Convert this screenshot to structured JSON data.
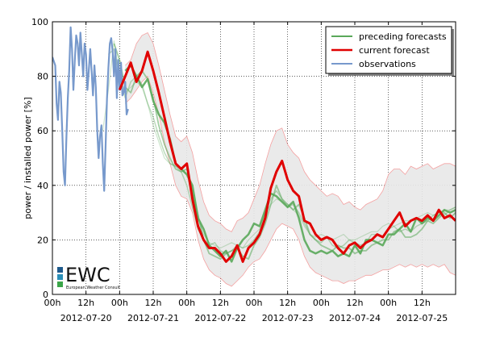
{
  "chart_data": {
    "type": "line",
    "title": "",
    "ylabel": "power / installed power [%]",
    "xlabel": "",
    "ylim": [
      0,
      100
    ],
    "yticks": [
      0,
      20,
      40,
      60,
      80,
      100
    ],
    "xlim_hours": [
      0,
      144
    ],
    "xticks_hours": [
      0,
      12,
      24,
      36,
      48,
      60,
      72,
      84,
      96,
      108,
      120,
      132
    ],
    "xtick_labels": [
      "00h",
      "12h",
      "00h",
      "12h",
      "00h",
      "12h",
      "00h",
      "12h",
      "00h",
      "12h",
      "00h",
      "12h"
    ],
    "date_labels": [
      "2012-07-20",
      "2012-07-21",
      "2012-07-22",
      "2012-07-23",
      "2012-07-24",
      "2012-07-25"
    ],
    "grid": true,
    "legend_position": "top-right",
    "legend": [
      {
        "label": "preceding forecasts",
        "color": "#5aa85a"
      },
      {
        "label": "current forecast",
        "color": "#e00000"
      },
      {
        "label": "observations",
        "color": "#7799cc"
      }
    ],
    "series": [
      {
        "name": "observations",
        "color": "#7799cc",
        "x": [
          0,
          1,
          1.5,
          2,
          2.5,
          3,
          3.5,
          4,
          4.5,
          5,
          5.5,
          6,
          6.5,
          7,
          7.5,
          8,
          8.5,
          9,
          9.5,
          10,
          10.5,
          11,
          11.5,
          12,
          12.5,
          13,
          13.5,
          14,
          14.5,
          15,
          15.5,
          16,
          16.5,
          17,
          17.5,
          18,
          18.5,
          19,
          19.5,
          20,
          20.5,
          21,
          21.5,
          22,
          22.5,
          23,
          23.5,
          24,
          24.5,
          25,
          25.5,
          26,
          26.5,
          27
        ],
        "y": [
          87,
          84,
          70,
          64,
          78,
          74,
          60,
          45,
          40,
          58,
          72,
          82,
          98,
          90,
          75,
          86,
          95,
          92,
          84,
          96,
          88,
          80,
          92,
          88,
          75,
          82,
          90,
          82,
          73,
          84,
          76,
          60,
          50,
          58,
          62,
          48,
          38,
          55,
          72,
          83,
          92,
          94,
          89,
          80,
          90,
          72,
          86,
          75,
          85,
          73,
          74,
          78,
          66,
          68
        ]
      },
      {
        "name": "current forecast",
        "color": "#e00000",
        "x": [
          24,
          26,
          28,
          30,
          32,
          34,
          36,
          38,
          40,
          42,
          44,
          46,
          48,
          50,
          52,
          54,
          56,
          58,
          60,
          62,
          64,
          66,
          68,
          70,
          72,
          74,
          76,
          78,
          80,
          82,
          84,
          86,
          88,
          90,
          92,
          94,
          96,
          98,
          100,
          102,
          104,
          106,
          108,
          110,
          112,
          114,
          116,
          118,
          120,
          122,
          124,
          126,
          128,
          130,
          132,
          134,
          136,
          138,
          140,
          142,
          144
        ],
        "y": [
          75,
          80,
          85,
          78,
          82,
          89,
          82,
          74,
          65,
          56,
          48,
          46,
          48,
          35,
          25,
          20,
          17,
          17,
          15,
          12,
          14,
          18,
          12,
          17,
          19,
          22,
          28,
          39,
          45,
          49,
          42,
          38,
          36,
          27,
          26,
          22,
          20,
          21,
          20,
          17,
          15,
          18,
          19,
          17,
          19,
          20,
          22,
          21,
          24,
          27,
          30,
          25,
          27,
          28,
          27,
          29,
          27,
          31,
          28,
          29,
          27
        ]
      },
      {
        "name": "preceding forecasts",
        "color": "#5aa85a",
        "x": [
          26,
          28,
          30,
          32,
          34,
          36,
          38,
          40,
          42,
          44,
          46,
          48,
          50,
          52,
          54,
          56,
          58,
          60,
          62,
          64,
          66,
          68,
          70,
          72,
          74,
          76,
          78,
          80,
          82,
          84,
          86,
          88,
          90,
          92,
          94,
          96,
          98,
          100,
          102,
          104,
          106,
          108,
          110,
          112,
          114,
          116,
          118,
          120,
          122,
          124,
          126,
          128,
          130,
          132,
          134,
          136,
          138,
          140,
          142,
          144
        ],
        "y": [
          82,
          84,
          80,
          76,
          79,
          71,
          66,
          63,
          57,
          48,
          46,
          44,
          40,
          28,
          24,
          18,
          16,
          14,
          16,
          12,
          17,
          20,
          22,
          26,
          25,
          31,
          37,
          36,
          34,
          32,
          34,
          28,
          20,
          16,
          15,
          16,
          15,
          16,
          14,
          15,
          14,
          18,
          15,
          20,
          20,
          19,
          18,
          22,
          22,
          24,
          26,
          23,
          28,
          26,
          28,
          27,
          29,
          31,
          30,
          31
        ]
      },
      {
        "name": "preceding forecasts",
        "color": "#5aa85a",
        "x": [
          22,
          24,
          26,
          28,
          30,
          32,
          34,
          36,
          38,
          40,
          42,
          44,
          46,
          48,
          50,
          52,
          54,
          56,
          58,
          60,
          62,
          64,
          66,
          68,
          70,
          72,
          74,
          76,
          78,
          80,
          82,
          84,
          86,
          88,
          90,
          92,
          94,
          96,
          98,
          100,
          102,
          104,
          106,
          108,
          110,
          112,
          114,
          116,
          118,
          120,
          122,
          124,
          126,
          128,
          130,
          132,
          134,
          136,
          138,
          140,
          142,
          144
        ],
        "y": [
          92,
          86,
          76,
          74,
          80,
          82,
          79,
          72,
          62,
          55,
          50,
          46,
          45,
          46,
          38,
          29,
          20,
          15,
          14,
          13,
          15,
          16,
          17,
          14,
          13,
          18,
          21,
          26,
          33,
          40,
          35,
          33,
          31,
          33,
          28,
          22,
          20,
          18,
          17,
          16,
          18,
          17,
          17,
          15,
          16,
          16,
          18,
          19,
          20,
          20,
          23,
          24,
          21,
          21,
          22,
          24,
          27,
          26,
          28,
          30,
          28,
          30
        ]
      },
      {
        "name": "preceding forecasts",
        "color": "#5aa85a",
        "x": [
          20,
          22,
          24,
          26,
          28,
          30,
          32,
          34,
          36,
          38,
          40,
          42,
          44,
          46,
          48,
          50,
          52,
          54,
          56,
          58,
          60,
          62,
          64,
          66,
          68,
          70,
          72,
          74,
          76,
          78,
          80,
          82,
          84,
          86,
          88,
          90,
          92,
          94,
          96,
          98,
          100,
          102,
          104,
          106,
          108,
          110,
          112,
          114,
          116,
          118,
          120,
          122,
          124,
          126,
          128,
          130,
          132,
          134,
          136,
          138,
          140,
          142,
          144
        ],
        "y": [
          88,
          90,
          80,
          72,
          78,
          80,
          77,
          70,
          65,
          58,
          52,
          48,
          47,
          45,
          40,
          32,
          24,
          20,
          18,
          19,
          16,
          15,
          16,
          18,
          17,
          18,
          20,
          23,
          30,
          35,
          38,
          35,
          32,
          33,
          30,
          26,
          22,
          20,
          19,
          21,
          18,
          17,
          18,
          20,
          19,
          18,
          19,
          22,
          22,
          21,
          24,
          25,
          23,
          24,
          23,
          25,
          26,
          27,
          29,
          30,
          29,
          31,
          32
        ]
      },
      {
        "name": "preceding forecasts",
        "color": "#5aa85a",
        "x": [
          18,
          20,
          22,
          24,
          26,
          28,
          30,
          32,
          34,
          36,
          38,
          40,
          42,
          44,
          46,
          48,
          50,
          52,
          54,
          56,
          58,
          60,
          62,
          64,
          66,
          68,
          70,
          72,
          74,
          76,
          78,
          80,
          82,
          84,
          86,
          88,
          90,
          92,
          94,
          96,
          98,
          100,
          102,
          104,
          106,
          108,
          110,
          112,
          114,
          116,
          118,
          120,
          122,
          124,
          126,
          128,
          130,
          132,
          134,
          136,
          138,
          140,
          142,
          144
        ],
        "y": [
          60,
          75,
          93,
          80,
          74,
          76,
          78,
          76,
          70,
          62,
          56,
          50,
          48,
          47,
          46,
          44,
          36,
          28,
          22,
          19,
          18,
          17,
          18,
          19,
          18,
          17,
          20,
          22,
          24,
          30,
          33,
          35,
          34,
          33,
          31,
          29,
          25,
          22,
          21,
          22,
          21,
          20,
          21,
          22,
          20,
          20,
          21,
          22,
          23,
          23,
          25,
          26,
          25,
          26,
          27,
          27,
          28,
          29,
          30,
          29,
          30,
          31,
          31,
          32
        ]
      }
    ],
    "uncertainty_band": {
      "color": "#e8e8e8",
      "x": [
        26,
        28,
        30,
        32,
        34,
        36,
        38,
        40,
        42,
        44,
        46,
        48,
        50,
        52,
        54,
        56,
        58,
        60,
        62,
        64,
        66,
        68,
        70,
        72,
        74,
        76,
        78,
        80,
        82,
        84,
        86,
        88,
        90,
        92,
        94,
        96,
        98,
        100,
        102,
        104,
        106,
        108,
        110,
        112,
        114,
        116,
        118,
        120,
        122,
        124,
        126,
        128,
        130,
        132,
        134,
        136,
        138,
        140,
        142,
        144
      ],
      "upper": [
        84,
        86,
        92,
        95,
        96,
        92,
        84,
        75,
        66,
        58,
        56,
        58,
        52,
        42,
        34,
        29,
        27,
        26,
        24,
        23,
        27,
        28,
        30,
        35,
        40,
        48,
        55,
        60,
        61,
        55,
        52,
        50,
        45,
        42,
        40,
        38,
        36,
        37,
        36,
        33,
        34,
        32,
        31,
        33,
        34,
        35,
        38,
        44,
        46,
        46,
        44,
        47,
        46,
        47,
        48,
        46,
        47,
        48,
        48,
        47
      ],
      "lower": [
        70,
        72,
        75,
        78,
        80,
        74,
        66,
        56,
        48,
        40,
        36,
        35,
        30,
        20,
        13,
        9,
        7,
        6,
        4,
        3,
        5,
        7,
        10,
        12,
        13,
        16,
        20,
        24,
        26,
        25,
        24,
        20,
        14,
        10,
        8,
        7,
        6,
        5,
        5,
        4,
        5,
        5,
        6,
        7,
        7,
        8,
        9,
        9,
        10,
        11,
        10,
        11,
        10,
        11,
        10,
        11,
        10,
        11,
        8,
        7
      ]
    }
  },
  "logo": {
    "text": "EWC",
    "subtext": "European Weather Consult",
    "colors": [
      "#1f5a8c",
      "#2a8fb8",
      "#3aa548"
    ]
  }
}
